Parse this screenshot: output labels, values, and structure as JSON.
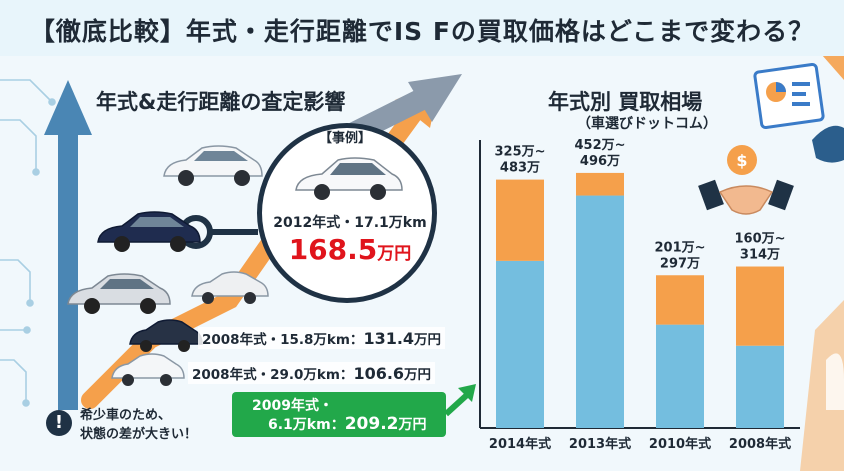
{
  "title": "【徹底比較】年式・走行距離でIS Fの買取価格はどこまで変わる？",
  "left_panel": {
    "heading": "年式&走行距離の査定影響",
    "case": {
      "label": "【事例】",
      "meta": "2012年式・17.1万km",
      "price": "168.5",
      "unit": "万円"
    },
    "rows": [
      {
        "meta": "2008年式・15.8万km：",
        "price": "131.4",
        "unit": "万円"
      },
      {
        "meta": "2008年式・29.0万km：",
        "price": "106.6",
        "unit": "万円"
      }
    ],
    "note": {
      "line1": "希少車のため、",
      "line2": "状態の差が大きい！",
      "icon": "exclamation-icon"
    },
    "highlight": {
      "line1": "2009年式・",
      "meta": "6.1万km：",
      "price": "209.2",
      "unit": "万円"
    }
  },
  "right_panel": {
    "heading": "年式別 買取相場",
    "subheading": "（車選びドットコム）",
    "icons": [
      "dollar-coin-icon",
      "handshake-icon",
      "report-icon"
    ]
  },
  "colors": {
    "bar_low": "#74bedf",
    "bar_high": "#f5a04b",
    "accent_red": "#e0141c",
    "accent_green": "#22a84a",
    "arrow_blue": "#4a86b4",
    "arrow_orange": "#f5a04b",
    "navy": "#1f3245"
  },
  "chart_data": {
    "type": "bar",
    "title": "年式別 買取相場",
    "subtitle": "（車選びドットコム）",
    "categories": [
      "2014年式",
      "2013年式",
      "2010年式",
      "2008年式"
    ],
    "series": [
      {
        "values": [
          325,
          452,
          201,
          160
        ]
      },
      {
        "values": [
          483,
          496,
          297,
          314
        ]
      }
    ],
    "data_labels": [
      [
        "325万~",
        "483万"
      ],
      [
        "452万~",
        "496万"
      ],
      [
        "201万~",
        "297万"
      ],
      [
        "160万~",
        "314万"
      ]
    ],
    "ylim": [
      0,
      560
    ],
    "xlabel": "",
    "ylabel": "",
    "grid": false
  }
}
